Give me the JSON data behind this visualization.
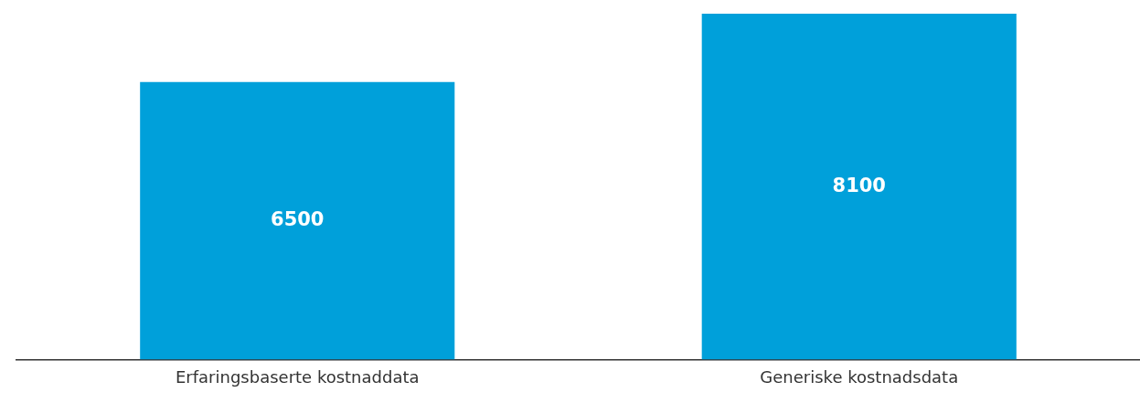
{
  "chart_data": {
    "type": "bar",
    "categories": [
      "Erfaringsbaserte kostnaddata",
      "Generiske kostnadsdata"
    ],
    "values": [
      6500,
      8100
    ],
    "color": "#00a0da",
    "data_labels": true,
    "relative": false,
    "grid": false,
    "legend": false
  }
}
